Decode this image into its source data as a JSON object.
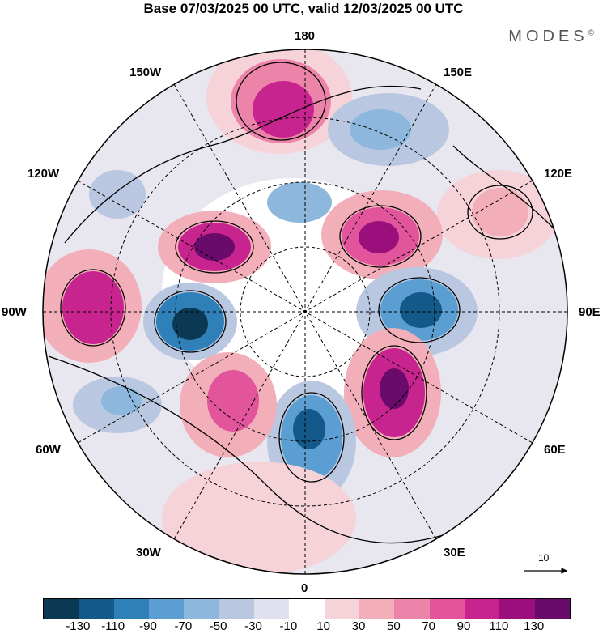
{
  "title": "Base 07/03/2025 00 UTC, valid 12/03/2025 00 UTC",
  "brand": "MODES",
  "brand_mark": "©",
  "longitude_labels": {
    "lon_180": "180",
    "lon_150w": "150W",
    "lon_150e": "150E",
    "lon_120w": "120W",
    "lon_120e": "120E",
    "lon_90w": "90W",
    "lon_90e": "90E",
    "lon_60w": "60W",
    "lon_60e": "60E",
    "lon_30w": "30W",
    "lon_30e": "30E",
    "lon_0": "0"
  },
  "reference_vector": {
    "label": "10"
  },
  "colorbar": {
    "colors": [
      "#0b3954",
      "#135a8a",
      "#2f7fb8",
      "#5b9fd2",
      "#8db7dc",
      "#b9c8e0",
      "#dfe1ee",
      "#ffffff",
      "#f6d3d8",
      "#f2aeb9",
      "#ec84a9",
      "#e2559c",
      "#c8248f",
      "#9a0f7c",
      "#6a0a6b"
    ],
    "tick_labels": [
      "-130",
      "-110",
      "-90",
      "-70",
      "-50",
      "-30",
      "-10",
      "10",
      "30",
      "50",
      "70",
      "90",
      "110",
      "130"
    ]
  }
}
